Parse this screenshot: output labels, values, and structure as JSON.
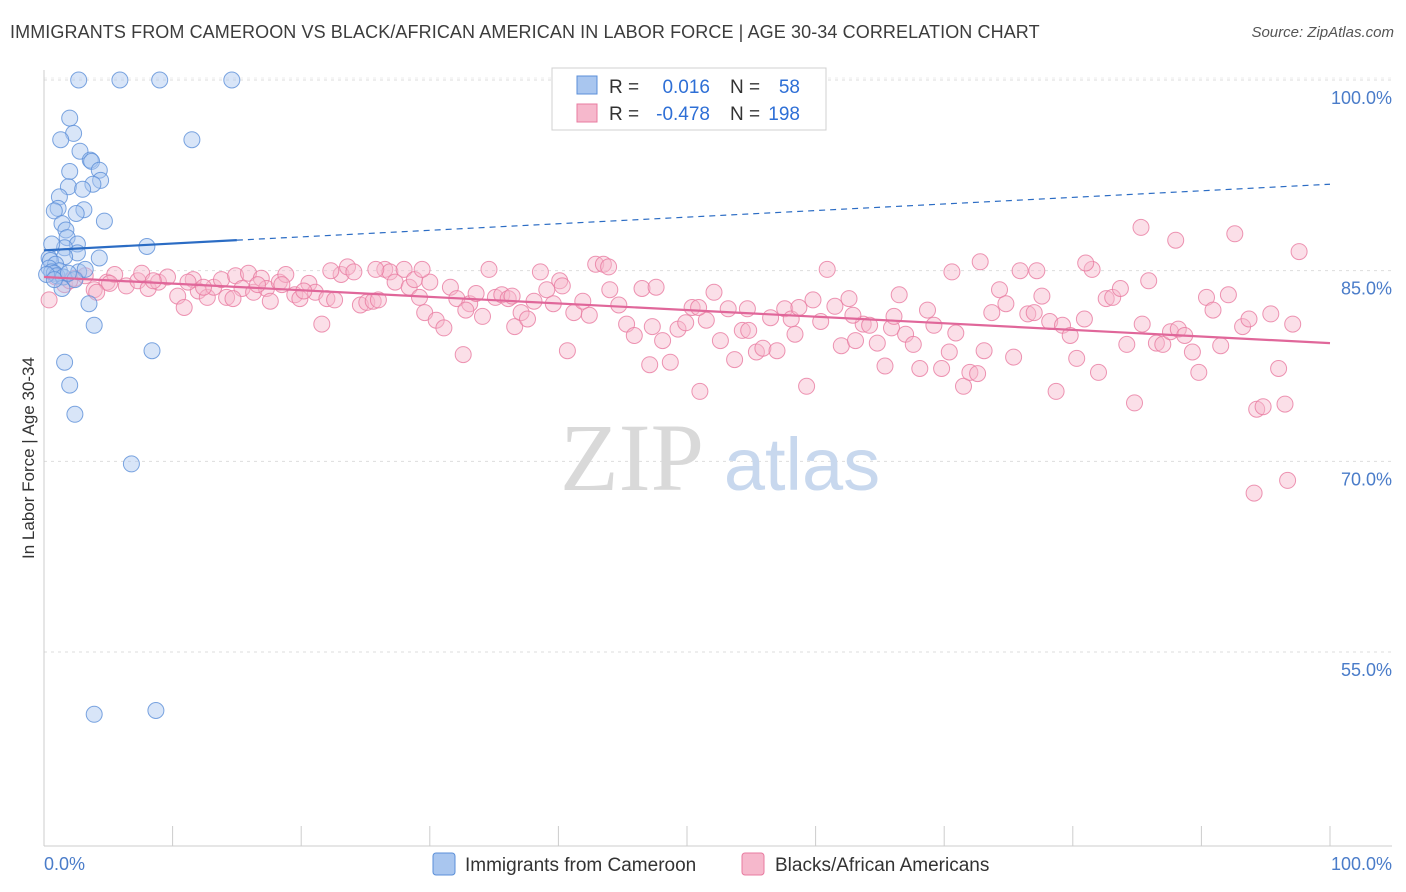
{
  "title": "IMMIGRANTS FROM CAMEROON VS BLACK/AFRICAN AMERICAN IN LABOR FORCE | AGE 30-34 CORRELATION CHART",
  "source": "Source: ZipAtlas.com",
  "watermark": {
    "zip": "ZIP",
    "atlas": "atlas"
  },
  "colors": {
    "blue_fill": "#a9c6ef",
    "blue_stroke": "#5b8fd8",
    "blue_line": "#2b6cc4",
    "pink_fill": "#f6b8cc",
    "pink_stroke": "#e87ba0",
    "pink_line": "#e0679a",
    "axis_label": "#4a7cc9",
    "grid": "#dddddd"
  },
  "legend": {
    "rows": [
      {
        "r_label": "R =",
        "r_value": "0.016",
        "n_label": "N =",
        "n_value": "58",
        "series": "blue"
      },
      {
        "r_label": "R =",
        "r_value": "-0.478",
        "n_label": "N =",
        "n_value": "198",
        "series": "pink"
      }
    ]
  },
  "bottom_legend": [
    "Immigrants from Cameroon",
    "Blacks/African Americans"
  ],
  "chart_data": {
    "type": "scatter",
    "xlabel": "",
    "ylabel": "In Labor Force | Age 30-34",
    "xlim": [
      0,
      100
    ],
    "ylim": [
      41,
      102
    ],
    "x_tick_labels": {
      "left": "0.0%",
      "right": "100.0%"
    },
    "y_ticks": [
      {
        "value": 100,
        "label": "100.0%"
      },
      {
        "value": 85,
        "label": "85.0%"
      },
      {
        "value": 70,
        "label": "70.0%"
      },
      {
        "value": 55,
        "label": "55.0%"
      }
    ],
    "series": [
      {
        "name": "Immigrants from Cameroon",
        "color": "blue",
        "trend": {
          "solid": [
            [
              0,
              86.6
            ],
            [
              15,
              87.4
            ]
          ],
          "dashed": [
            [
              15,
              87.4
            ],
            [
              100,
              91.8
            ]
          ]
        },
        "points": [
          [
            2.7,
            100
          ],
          [
            5.9,
            100
          ],
          [
            9.0,
            100
          ],
          [
            14.6,
            100
          ],
          [
            2.0,
            97.0
          ],
          [
            2.3,
            95.8
          ],
          [
            1.3,
            95.3
          ],
          [
            11.5,
            95.3
          ],
          [
            2.8,
            94.4
          ],
          [
            3.6,
            93.7
          ],
          [
            3.7,
            93.6
          ],
          [
            2.0,
            92.8
          ],
          [
            4.3,
            92.9
          ],
          [
            4.4,
            92.1
          ],
          [
            3.8,
            91.8
          ],
          [
            1.9,
            91.6
          ],
          [
            3.0,
            91.4
          ],
          [
            1.2,
            90.8
          ],
          [
            1.1,
            89.9
          ],
          [
            3.1,
            89.8
          ],
          [
            0.8,
            89.7
          ],
          [
            2.5,
            89.5
          ],
          [
            1.4,
            88.7
          ],
          [
            4.7,
            88.9
          ],
          [
            1.7,
            88.2
          ],
          [
            1.8,
            87.6
          ],
          [
            2.6,
            87.1
          ],
          [
            1.6,
            86.8
          ],
          [
            0.6,
            87.1
          ],
          [
            8.0,
            86.9
          ],
          [
            2.6,
            86.4
          ],
          [
            0.4,
            86.0
          ],
          [
            1.6,
            86.1
          ],
          [
            0.5,
            85.8
          ],
          [
            0.9,
            85.5
          ],
          [
            1.2,
            85.0
          ],
          [
            4.3,
            86.0
          ],
          [
            0.4,
            85.2
          ],
          [
            0.6,
            84.9
          ],
          [
            0.8,
            84.8
          ],
          [
            1.0,
            84.6
          ],
          [
            1.5,
            84.5
          ],
          [
            2.7,
            84.9
          ],
          [
            3.2,
            85.1
          ],
          [
            0.2,
            84.7
          ],
          [
            2.4,
            84.3
          ],
          [
            1.4,
            83.6
          ],
          [
            3.5,
            82.4
          ],
          [
            3.9,
            80.7
          ],
          [
            8.4,
            78.7
          ],
          [
            1.6,
            77.8
          ],
          [
            2.0,
            76.0
          ],
          [
            2.4,
            73.7
          ],
          [
            6.8,
            69.8
          ],
          [
            3.9,
            50.1
          ],
          [
            8.7,
            50.4
          ],
          [
            0.8,
            84.3
          ],
          [
            1.9,
            84.8
          ]
        ]
      },
      {
        "name": "Blacks/African Americans",
        "color": "pink",
        "trend": {
          "solid": [
            [
              0,
              84.5
            ],
            [
              100,
              79.3
            ]
          ]
        },
        "points": [
          [
            0.4,
            82.7
          ],
          [
            0.9,
            84.5
          ],
          [
            1.6,
            83.9
          ],
          [
            2.4,
            84.4
          ],
          [
            3.2,
            84.6
          ],
          [
            3.9,
            83.5
          ],
          [
            4.9,
            84.1
          ],
          [
            5.5,
            84.7
          ],
          [
            6.4,
            83.8
          ],
          [
            7.3,
            84.2
          ],
          [
            8.1,
            83.6
          ],
          [
            8.9,
            84.1
          ],
          [
            9.6,
            84.5
          ],
          [
            10.4,
            83.0
          ],
          [
            10.9,
            82.1
          ],
          [
            11.6,
            84.3
          ],
          [
            12.0,
            83.4
          ],
          [
            12.7,
            82.9
          ],
          [
            13.2,
            83.7
          ],
          [
            13.8,
            84.3
          ],
          [
            14.2,
            82.9
          ],
          [
            14.9,
            84.6
          ],
          [
            15.4,
            83.6
          ],
          [
            15.9,
            84.8
          ],
          [
            16.3,
            83.3
          ],
          [
            16.9,
            84.4
          ],
          [
            17.3,
            83.6
          ],
          [
            17.6,
            82.6
          ],
          [
            18.3,
            84.1
          ],
          [
            18.8,
            84.7
          ],
          [
            19.5,
            83.1
          ],
          [
            19.9,
            82.8
          ],
          [
            20.6,
            84.0
          ],
          [
            21.1,
            83.3
          ],
          [
            21.6,
            80.8
          ],
          [
            22.0,
            82.8
          ],
          [
            22.6,
            82.7
          ],
          [
            23.1,
            84.7
          ],
          [
            23.6,
            85.3
          ],
          [
            24.1,
            84.9
          ],
          [
            24.6,
            82.3
          ],
          [
            25.1,
            82.5
          ],
          [
            25.6,
            82.6
          ],
          [
            26.0,
            82.7
          ],
          [
            26.5,
            85.1
          ],
          [
            26.9,
            84.9
          ],
          [
            27.3,
            84.1
          ],
          [
            28.0,
            85.1
          ],
          [
            28.4,
            83.7
          ],
          [
            28.8,
            84.3
          ],
          [
            29.2,
            82.9
          ],
          [
            29.6,
            81.7
          ],
          [
            30.0,
            84.1
          ],
          [
            30.5,
            81.1
          ],
          [
            31.1,
            80.5
          ],
          [
            31.6,
            83.7
          ],
          [
            32.1,
            82.8
          ],
          [
            32.6,
            78.4
          ],
          [
            33.1,
            82.4
          ],
          [
            33.6,
            83.2
          ],
          [
            34.1,
            81.4
          ],
          [
            34.6,
            85.1
          ],
          [
            35.1,
            82.9
          ],
          [
            35.6,
            83.1
          ],
          [
            36.1,
            82.8
          ],
          [
            36.6,
            80.6
          ],
          [
            37.1,
            81.7
          ],
          [
            37.6,
            81.2
          ],
          [
            38.1,
            82.6
          ],
          [
            38.6,
            84.9
          ],
          [
            39.1,
            83.5
          ],
          [
            39.6,
            82.4
          ],
          [
            40.1,
            84.2
          ],
          [
            40.7,
            78.7
          ],
          [
            41.2,
            81.7
          ],
          [
            41.9,
            82.6
          ],
          [
            42.4,
            81.5
          ],
          [
            42.9,
            85.5
          ],
          [
            43.5,
            85.5
          ],
          [
            44.0,
            83.5
          ],
          [
            44.7,
            82.3
          ],
          [
            45.3,
            80.8
          ],
          [
            45.9,
            79.9
          ],
          [
            46.5,
            83.6
          ],
          [
            47.1,
            77.6
          ],
          [
            47.6,
            83.7
          ],
          [
            48.1,
            79.5
          ],
          [
            48.7,
            77.8
          ],
          [
            49.3,
            80.4
          ],
          [
            49.9,
            80.9
          ],
          [
            50.4,
            82.1
          ],
          [
            51.0,
            75.5
          ],
          [
            51.5,
            81.1
          ],
          [
            52.1,
            83.3
          ],
          [
            52.6,
            79.5
          ],
          [
            53.2,
            82.0
          ],
          [
            53.7,
            78.0
          ],
          [
            54.3,
            80.3
          ],
          [
            54.8,
            80.3
          ],
          [
            55.4,
            78.6
          ],
          [
            55.9,
            78.9
          ],
          [
            56.5,
            81.3
          ],
          [
            57.0,
            78.7
          ],
          [
            57.6,
            82.0
          ],
          [
            58.1,
            81.2
          ],
          [
            58.7,
            82.1
          ],
          [
            59.3,
            75.9
          ],
          [
            59.8,
            82.7
          ],
          [
            60.4,
            81.0
          ],
          [
            60.9,
            85.1
          ],
          [
            61.5,
            82.2
          ],
          [
            62.0,
            79.1
          ],
          [
            62.6,
            82.8
          ],
          [
            63.1,
            79.5
          ],
          [
            63.7,
            80.8
          ],
          [
            64.2,
            80.7
          ],
          [
            64.8,
            79.3
          ],
          [
            65.4,
            77.5
          ],
          [
            65.9,
            80.5
          ],
          [
            66.5,
            83.1
          ],
          [
            67.0,
            80.0
          ],
          [
            67.6,
            79.2
          ],
          [
            68.1,
            77.3
          ],
          [
            68.7,
            81.9
          ],
          [
            69.2,
            80.7
          ],
          [
            69.8,
            77.3
          ],
          [
            70.4,
            78.6
          ],
          [
            70.9,
            80.1
          ],
          [
            71.5,
            75.9
          ],
          [
            72.0,
            77.0
          ],
          [
            72.6,
            76.9
          ],
          [
            73.1,
            78.7
          ],
          [
            73.7,
            81.7
          ],
          [
            74.3,
            83.5
          ],
          [
            74.8,
            82.4
          ],
          [
            75.4,
            78.2
          ],
          [
            75.9,
            85.0
          ],
          [
            76.5,
            81.6
          ],
          [
            77.0,
            81.7
          ],
          [
            77.6,
            83.0
          ],
          [
            78.2,
            81.0
          ],
          [
            78.7,
            75.5
          ],
          [
            79.2,
            80.7
          ],
          [
            79.8,
            79.9
          ],
          [
            80.3,
            78.1
          ],
          [
            80.9,
            81.2
          ],
          [
            81.5,
            85.1
          ],
          [
            82.0,
            77.0
          ],
          [
            82.6,
            82.8
          ],
          [
            83.1,
            82.9
          ],
          [
            83.7,
            83.6
          ],
          [
            84.2,
            79.2
          ],
          [
            84.8,
            74.6
          ],
          [
            85.4,
            80.8
          ],
          [
            85.9,
            84.2
          ],
          [
            86.5,
            79.3
          ],
          [
            87.0,
            79.2
          ],
          [
            87.6,
            80.2
          ],
          [
            88.2,
            80.4
          ],
          [
            88.7,
            79.9
          ],
          [
            89.3,
            78.6
          ],
          [
            89.8,
            77.0
          ],
          [
            90.4,
            82.9
          ],
          [
            90.9,
            81.9
          ],
          [
            91.5,
            79.1
          ],
          [
            92.1,
            83.1
          ],
          [
            92.6,
            87.9
          ],
          [
            93.2,
            80.6
          ],
          [
            93.7,
            81.2
          ],
          [
            94.3,
            74.1
          ],
          [
            94.8,
            74.3
          ],
          [
            95.4,
            81.6
          ],
          [
            96.0,
            77.3
          ],
          [
            96.5,
            74.5
          ],
          [
            97.1,
            80.8
          ],
          [
            97.6,
            86.5
          ],
          [
            94.1,
            67.5
          ],
          [
            96.7,
            68.5
          ],
          [
            88.0,
            87.4
          ],
          [
            85.3,
            88.4
          ],
          [
            81.0,
            85.6
          ],
          [
            77.2,
            85.0
          ],
          [
            72.8,
            85.7
          ],
          [
            70.6,
            84.9
          ],
          [
            66.1,
            81.4
          ],
          [
            62.9,
            81.5
          ],
          [
            58.4,
            80.0
          ],
          [
            54.7,
            82.0
          ],
          [
            50.9,
            82.1
          ],
          [
            47.3,
            80.6
          ],
          [
            43.9,
            85.3
          ],
          [
            40.3,
            83.8
          ],
          [
            36.4,
            83.0
          ],
          [
            32.8,
            81.9
          ],
          [
            29.4,
            85.1
          ],
          [
            25.8,
            85.1
          ],
          [
            22.3,
            85.0
          ],
          [
            18.5,
            83.9
          ],
          [
            14.7,
            82.8
          ],
          [
            11.2,
            84.1
          ],
          [
            7.6,
            84.8
          ],
          [
            4.1,
            83.3
          ],
          [
            2.0,
            84.2
          ],
          [
            5.1,
            84.0
          ],
          [
            8.5,
            84.2
          ],
          [
            12.4,
            83.7
          ],
          [
            16.6,
            83.9
          ],
          [
            20.2,
            83.4
          ]
        ]
      }
    ]
  }
}
